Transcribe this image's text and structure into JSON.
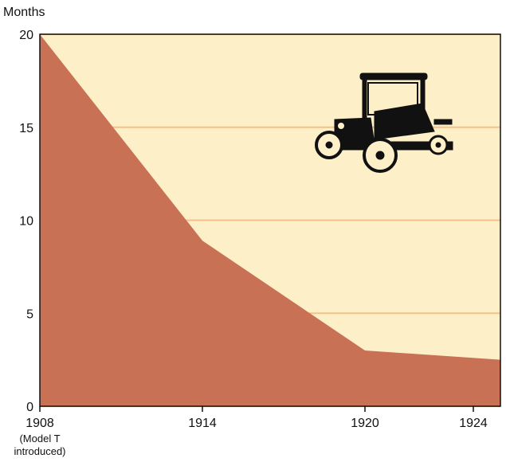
{
  "chart_data": {
    "type": "area",
    "ylabel": "Months",
    "x": [
      1908,
      1914,
      1920,
      1925
    ],
    "values": [
      20,
      8.9,
      3,
      2.5
    ],
    "color": "#c87155",
    "background": "#fdf0c8",
    "grid_color": "#f5c08a",
    "xlim": [
      1908,
      1925
    ],
    "xticks": [
      1908,
      1914,
      1920,
      1924
    ],
    "ylim": [
      0,
      20
    ],
    "yticks": [
      0,
      5,
      10,
      15,
      20
    ],
    "grid": true,
    "annotation": "(Model T introduced)"
  }
}
